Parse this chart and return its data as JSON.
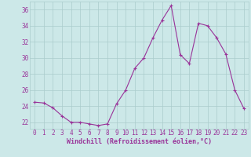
{
  "x": [
    0,
    1,
    2,
    3,
    4,
    5,
    6,
    7,
    8,
    9,
    10,
    11,
    12,
    13,
    14,
    15,
    16,
    17,
    18,
    19,
    20,
    21,
    22,
    23
  ],
  "y": [
    24.5,
    24.4,
    23.8,
    22.8,
    22.0,
    22.0,
    21.8,
    21.6,
    21.8,
    24.3,
    26.0,
    28.7,
    30.0,
    32.5,
    34.7,
    36.5,
    30.4,
    29.3,
    34.3,
    34.0,
    32.5,
    30.5,
    26.0,
    23.7
  ],
  "line_color": "#993399",
  "marker": "+",
  "bg_color": "#cce8e8",
  "grid_color": "#aacccc",
  "xlabel": "Windchill (Refroidissement éolien,°C)",
  "xlabel_color": "#993399",
  "ylabel_ticks": [
    22,
    24,
    26,
    28,
    30,
    32,
    34,
    36
  ],
  "xlim": [
    -0.5,
    23.5
  ],
  "ylim": [
    21.2,
    37.0
  ],
  "tick_fontsize": 5.5,
  "xlabel_fontsize": 6.0
}
